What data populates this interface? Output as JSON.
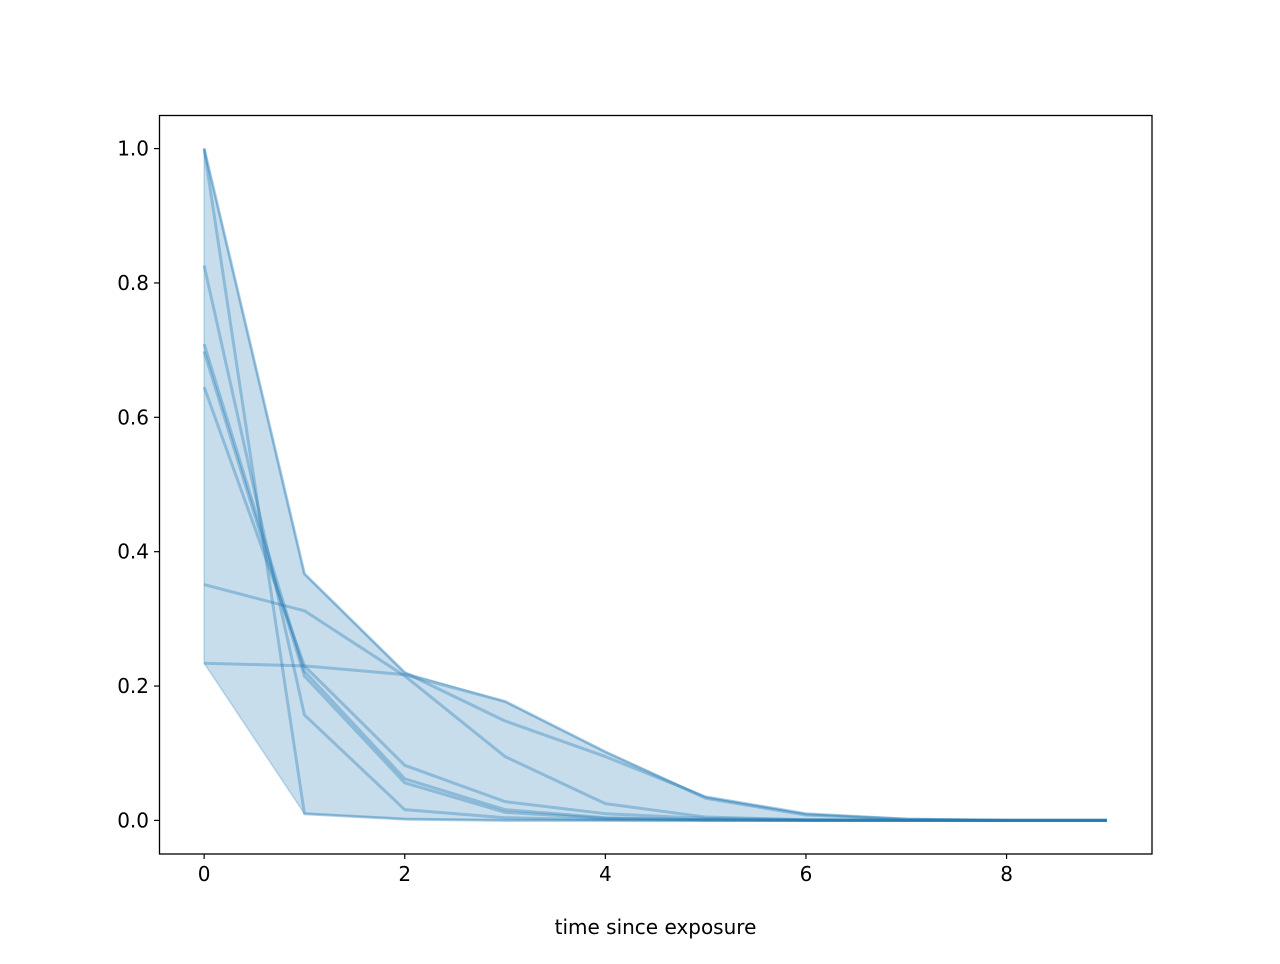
{
  "chart_data": {
    "type": "line",
    "title": "",
    "xlabel": "time since exposure",
    "ylabel": "",
    "xlim": [
      -0.45,
      9.45
    ],
    "ylim": [
      -0.05,
      1.05
    ],
    "xticks": [
      0,
      2,
      4,
      6,
      8
    ],
    "yticks": [
      0.0,
      0.2,
      0.4,
      0.6,
      0.8,
      1.0
    ],
    "xtick_labels": [
      "0",
      "2",
      "4",
      "6",
      "8"
    ],
    "ytick_labels": [
      "0.0",
      "0.2",
      "0.4",
      "0.6",
      "0.8",
      "1.0"
    ],
    "grid": false,
    "color": "#1f77b4",
    "fill_between": "min-max of series",
    "x": [
      0,
      1,
      2,
      3,
      4,
      5,
      6,
      7,
      8,
      9
    ],
    "series": [
      {
        "values": [
          1.0,
          0.01,
          0.002,
          0.0,
          0.0,
          0.0,
          0.0,
          0.0,
          0.0,
          0.0
        ]
      },
      {
        "values": [
          1.0,
          0.367,
          0.22,
          0.148,
          0.095,
          0.035,
          0.01,
          0.002,
          0.0,
          0.0
        ]
      },
      {
        "values": [
          0.826,
          0.157,
          0.016,
          0.004,
          0.001,
          0.0,
          0.0,
          0.0,
          0.0,
          0.0
        ]
      },
      {
        "values": [
          0.709,
          0.222,
          0.062,
          0.016,
          0.004,
          0.001,
          0.0,
          0.0,
          0.0,
          0.0
        ]
      },
      {
        "values": [
          0.698,
          0.215,
          0.056,
          0.012,
          0.003,
          0.001,
          0.0,
          0.0,
          0.0,
          0.0
        ]
      },
      {
        "values": [
          0.645,
          0.23,
          0.082,
          0.028,
          0.01,
          0.003,
          0.001,
          0.0,
          0.0,
          0.0
        ]
      },
      {
        "values": [
          0.351,
          0.312,
          0.215,
          0.095,
          0.025,
          0.005,
          0.001,
          0.0,
          0.0,
          0.0
        ]
      },
      {
        "values": [
          0.234,
          0.23,
          0.217,
          0.177,
          0.102,
          0.033,
          0.008,
          0.002,
          0.0,
          0.0
        ]
      }
    ]
  }
}
